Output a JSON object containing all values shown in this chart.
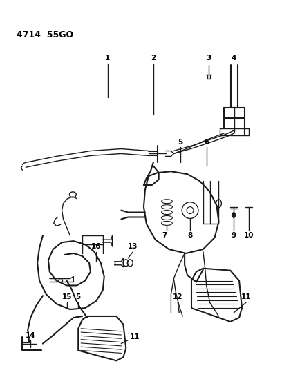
{
  "title": "4714  55GO",
  "bg_color": "#ffffff",
  "line_color": "#1a1a1a",
  "label_color": "#000000",
  "figsize": [
    4.08,
    5.33
  ],
  "dpi": 100,
  "border_color": "#dddddd"
}
